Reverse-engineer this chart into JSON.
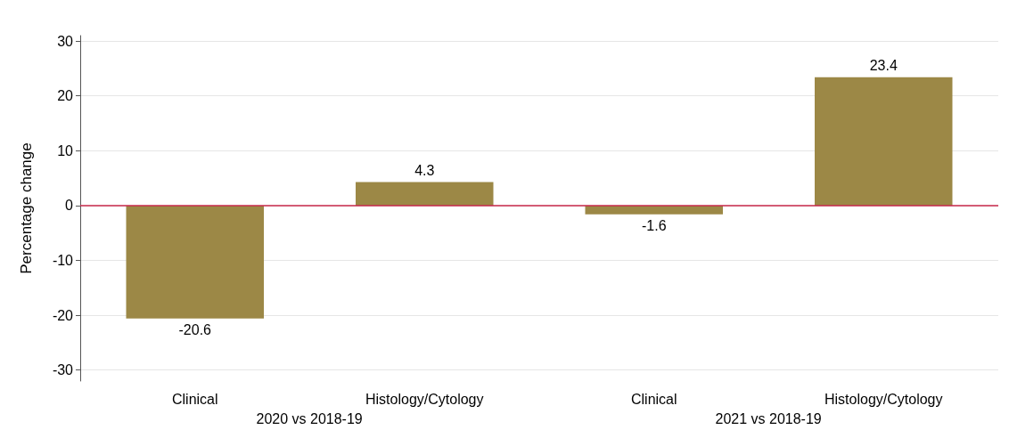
{
  "chart_data": {
    "type": "bar",
    "ylabel": "Percentage change",
    "categories": [
      "Clinical",
      "Histology/Cytology",
      "Clinical",
      "Histology/Cytology"
    ],
    "values": [
      -20.6,
      4.3,
      -1.6,
      23.4
    ],
    "color": "#9c8846",
    "ylim": [
      -32,
      31
    ],
    "yticks": [
      -30,
      -20,
      -10,
      0,
      10,
      20,
      30
    ],
    "grid": "y",
    "data_labels": true,
    "ref_lines": [
      {
        "axis": "y",
        "value": 0,
        "color": "#c8284b"
      }
    ],
    "annotations": [
      "2020 vs 2018-19",
      "2021 vs 2018-19"
    ]
  }
}
